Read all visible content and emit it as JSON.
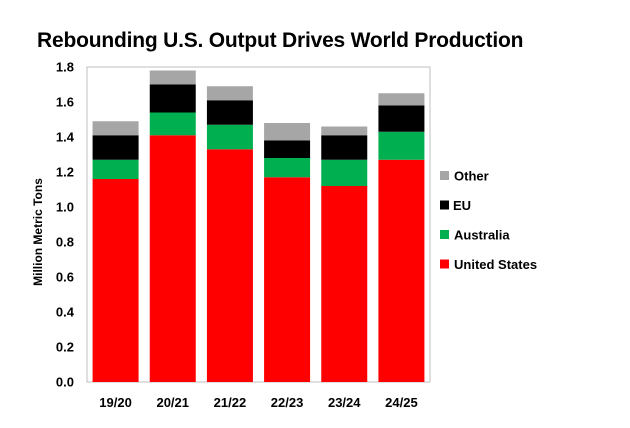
{
  "chart_data": {
    "type": "bar",
    "stacked": true,
    "title": "Rebounding U.S. Output Drives World Production",
    "xlabel": "",
    "ylabel": "Million Metric Tons",
    "ylim": [
      0,
      1.8
    ],
    "yticks": [
      "0.0",
      "0.2",
      "0.4",
      "0.6",
      "0.8",
      "1.0",
      "1.2",
      "1.4",
      "1.6",
      "1.8"
    ],
    "grid": false,
    "legend_position": "right",
    "categories": [
      "19/20",
      "20/21",
      "21/22",
      "22/23",
      "23/24",
      "24/25"
    ],
    "series": [
      {
        "name": "United States",
        "color": "#ff0000",
        "values": [
          1.16,
          1.41,
          1.33,
          1.17,
          1.12,
          1.27
        ]
      },
      {
        "name": "Australia",
        "color": "#00b050",
        "values": [
          0.11,
          0.13,
          0.14,
          0.11,
          0.15,
          0.16
        ]
      },
      {
        "name": "EU",
        "color": "#000000",
        "values": [
          0.14,
          0.16,
          0.14,
          0.1,
          0.14,
          0.15
        ]
      },
      {
        "name": "Other",
        "color": "#a6a6a6",
        "values": [
          0.08,
          0.08,
          0.08,
          0.1,
          0.05,
          0.07
        ]
      }
    ]
  }
}
